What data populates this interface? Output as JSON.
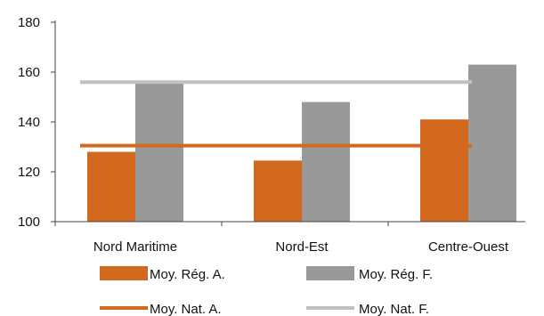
{
  "chart_data": {
    "type": "bar",
    "categories": [
      "Nord Maritime",
      "Nord-Est",
      "Centre-Ouest"
    ],
    "series": [
      {
        "name": "Moy. Rég. A.",
        "type": "bar",
        "values": [
          128,
          124.5,
          141
        ],
        "color": "#d2691e"
      },
      {
        "name": "Moy. Rég. F.",
        "type": "bar",
        "values": [
          156,
          148,
          163
        ],
        "color": "#999999"
      },
      {
        "name": "Moy. Nat. A.",
        "type": "line",
        "values": [
          130.5,
          130.5,
          130.5
        ],
        "color": "#d2691e"
      },
      {
        "name": "Moy. Nat. F.",
        "type": "line",
        "values": [
          156,
          156,
          156
        ],
        "color": "#c0c0c0"
      }
    ],
    "ylim": [
      100,
      180
    ],
    "yticks": [
      100,
      120,
      140,
      160,
      180
    ],
    "grid": false,
    "legend": "bottom"
  }
}
